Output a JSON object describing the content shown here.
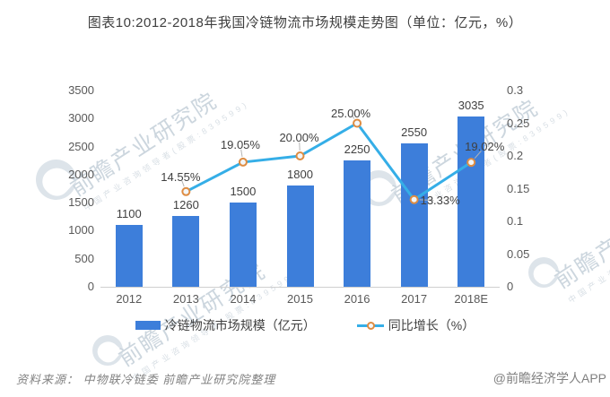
{
  "title": "图表10:2012-2018年我国冷链物流市场规模走势图（单位：亿元，%）",
  "source_note": "资料来源： 中物联冷链委  前瞻产业研究院整理",
  "credit": "@前瞻经济学人APP",
  "watermark": {
    "text": "前瞻产业研究院",
    "subtext": "中国产业咨询领导者(股票:839599)"
  },
  "chart_data": {
    "type": "bar",
    "subtype": "bar+line combo",
    "categories": [
      "2012",
      "2013",
      "2014",
      "2015",
      "2016",
      "2017",
      "2018E"
    ],
    "series": [
      {
        "name": "冷链物流市场规模（亿元）",
        "type": "bar",
        "axis": "left",
        "color": "#3D7EDA",
        "values": [
          1100,
          1260,
          1500,
          1800,
          2250,
          2550,
          3035
        ],
        "value_labels": [
          "1100",
          "1260",
          "1500",
          "1800",
          "2250",
          "2550",
          "3035"
        ]
      },
      {
        "name": "同比增长（%）",
        "type": "line",
        "axis": "right",
        "color": "#35AEE7",
        "marker_color": "#DE8C42",
        "values": [
          null,
          0.1455,
          0.1905,
          0.2,
          0.25,
          0.1333,
          0.1902
        ],
        "value_labels": [
          null,
          "14.55%",
          "19.05%",
          "20.00%",
          "25.00%",
          "13.33%",
          "19.02%"
        ]
      }
    ],
    "left_axis": {
      "min": 0,
      "max": 3500,
      "ticks": [
        "0",
        "500",
        "1000",
        "1500",
        "2000",
        "2500",
        "3000",
        "3500"
      ]
    },
    "right_axis": {
      "min": 0,
      "max": 0.3,
      "ticks": [
        "0",
        "0.05",
        "0.1",
        "0.15",
        "0.2",
        "0.25",
        "0.3"
      ]
    },
    "grid": "off",
    "legend_position": "bottom",
    "label_offsets": [
      null,
      [
        -6,
        -16
      ],
      [
        -3,
        -19
      ],
      [
        -1,
        -20
      ],
      [
        -7,
        -11
      ],
      [
        29,
        1
      ],
      [
        15,
        -17
      ]
    ]
  }
}
